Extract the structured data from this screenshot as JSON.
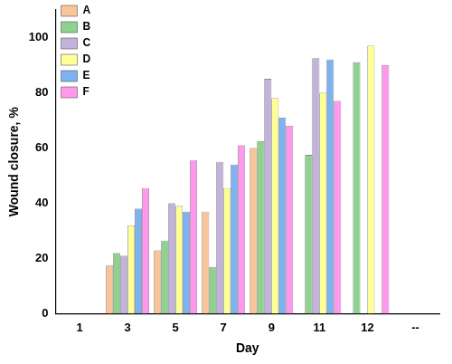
{
  "chart_data": {
    "type": "bar",
    "x_label": "Day",
    "y_label": "Wound closure, %",
    "categories": [
      "1",
      "3",
      "5",
      "7",
      "9",
      "11",
      "12",
      "--"
    ],
    "series": [
      {
        "name": "A",
        "color": "#f9c49a",
        "values": [
          null,
          17.5,
          23,
          37,
          60,
          null,
          null,
          null
        ]
      },
      {
        "name": "B",
        "color": "#8fd18f",
        "values": [
          null,
          22,
          26.5,
          17,
          62.5,
          57.5,
          91,
          null
        ]
      },
      {
        "name": "C",
        "color": "#c3b3da",
        "values": [
          null,
          21,
          40,
          55,
          85,
          92.5,
          null,
          null
        ]
      },
      {
        "name": "D",
        "color": "#ffff99",
        "values": [
          null,
          32,
          39,
          45.5,
          78,
          80,
          97,
          null
        ]
      },
      {
        "name": "E",
        "color": "#7fb2f0",
        "values": [
          null,
          38,
          37,
          54,
          71,
          92,
          null,
          null
        ]
      },
      {
        "name": "F",
        "color": "#ff99ee",
        "values": [
          null,
          45.5,
          55.5,
          61,
          68,
          77,
          90,
          null
        ]
      }
    ],
    "ylim": [
      0,
      110
    ],
    "yticks": [
      0,
      20,
      40,
      60,
      80,
      100
    ],
    "grid": false,
    "legend": "upper left"
  }
}
